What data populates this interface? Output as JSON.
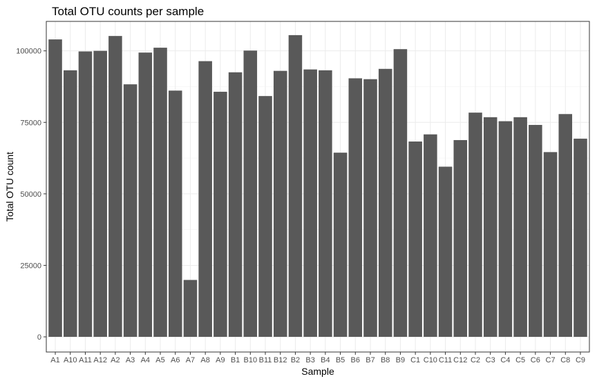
{
  "chart_data": {
    "type": "bar",
    "title": "Total OTU counts per sample",
    "xlabel": "Sample",
    "ylabel": "Total OTU count",
    "ylim": [
      -5300,
      110300
    ],
    "yticks": [
      0,
      25000,
      50000,
      75000,
      100000
    ],
    "ytick_labels": [
      "0",
      "25000",
      "50000",
      "75000",
      "100000"
    ],
    "grid": true,
    "bar_color": "#595959",
    "categories": [
      "A1",
      "A10",
      "A11",
      "A12",
      "A2",
      "A3",
      "A4",
      "A5",
      "A6",
      "A7",
      "A8",
      "A9",
      "B1",
      "B10",
      "B11",
      "B12",
      "B2",
      "B3",
      "B4",
      "B5",
      "B6",
      "B7",
      "B8",
      "B9",
      "C1",
      "C10",
      "C11",
      "C12",
      "C2",
      "C3",
      "C4",
      "C5",
      "C6",
      "C7",
      "C8",
      "C9"
    ],
    "values": [
      104000,
      93200,
      99800,
      100000,
      105200,
      88300,
      99400,
      101100,
      86100,
      19900,
      96400,
      85700,
      92500,
      100100,
      84200,
      93000,
      105500,
      93500,
      93200,
      64400,
      90400,
      90100,
      93700,
      100600,
      68300,
      70800,
      59500,
      68800,
      78400,
      76800,
      75400,
      76800,
      74100,
      64600,
      77900,
      69300
    ]
  }
}
